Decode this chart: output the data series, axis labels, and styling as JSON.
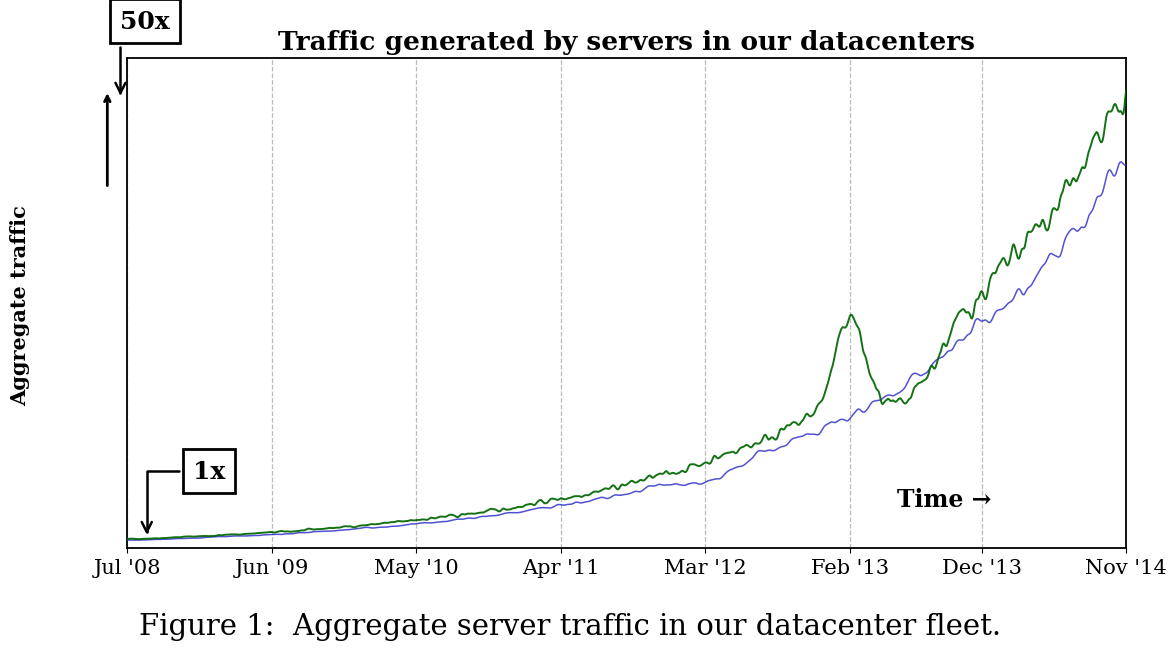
{
  "title": "Traffic generated by servers in our datacenters",
  "ylabel": "Aggregate traffic",
  "xlabel_text": "Time →",
  "caption": "Figure 1:  Aggregate server traffic in our datacenter fleet.",
  "x_tick_labels": [
    "Jul '08",
    "Jun '09",
    "May '10",
    "Apr '11",
    "Mar '12",
    "Feb '13",
    "Dec '13",
    "Nov '14"
  ],
  "x_tick_positions": [
    0,
    11,
    22,
    33,
    44,
    55,
    65,
    76
  ],
  "annotation_50x": "50x",
  "annotation_1x": "1x",
  "color_green": "#006600",
  "color_blue": "#3333cc",
  "background_color": "#ffffff",
  "grid_color": "#bbbbbb",
  "n_points": 77,
  "title_fontsize": 19,
  "label_fontsize": 15,
  "tick_fontsize": 15,
  "caption_fontsize": 21,
  "annotation_fontsize": 18
}
